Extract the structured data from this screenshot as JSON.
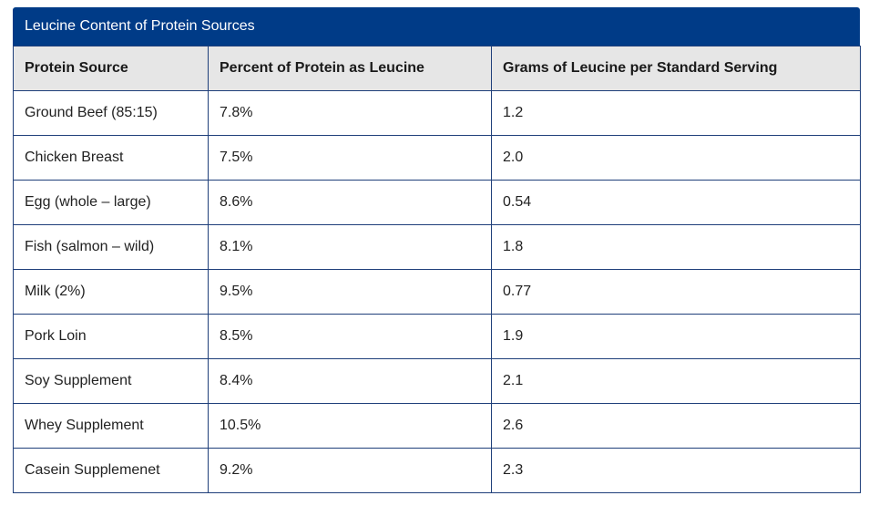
{
  "table": {
    "caption": "Leucine Content of Protein Sources",
    "headers": [
      "Protein Source",
      "Percent of Protein as Leucine",
      "Grams of Leucine per Standard Serving"
    ],
    "rows": [
      [
        "Ground Beef (85:15)",
        "7.8%",
        "1.2"
      ],
      [
        "Chicken Breast",
        "7.5%",
        "2.0"
      ],
      [
        "Egg (whole – large)",
        "8.6%",
        "0.54"
      ],
      [
        "Fish (salmon – wild)",
        "8.1%",
        "1.8"
      ],
      [
        "Milk (2%)",
        "9.5%",
        "0.77"
      ],
      [
        "Pork Loin",
        "8.5%",
        "1.9"
      ],
      [
        "Soy Supplement",
        "8.4%",
        "2.1"
      ],
      [
        "Whey Supplement",
        "10.5%",
        "2.6"
      ],
      [
        "Casein Supplemenet",
        "9.2%",
        "2.3"
      ]
    ]
  },
  "colors": {
    "caption_background": "#003b87",
    "header_background": "#e6e6e6",
    "border": "#1f3f7a"
  }
}
